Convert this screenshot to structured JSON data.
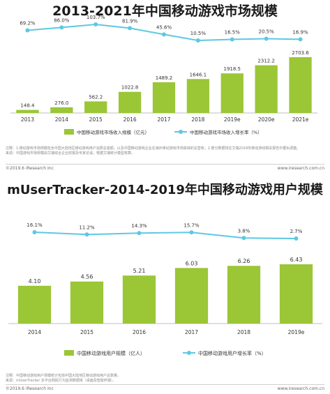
{
  "chart_data": [
    {
      "type": "bar",
      "title": "2013-2021年中国移动游戏市场规模",
      "categories": [
        "2013",
        "2014",
        "2015",
        "2016",
        "2017",
        "2018",
        "2019e",
        "2020e",
        "2021e"
      ],
      "series": [
        {
          "name": "中国移动游戏市场收入规模（亿元）",
          "type": "bar",
          "values": [
            148.4,
            276.0,
            562.2,
            1022.8,
            1489.2,
            1646.1,
            1918.5,
            2312.2,
            2703.6
          ],
          "labels": [
            "148.4",
            "276.0",
            "562.2",
            "1022.8",
            "1489.2",
            "1646.1",
            "1918.5",
            "2312.2",
            "2703.6"
          ]
        },
        {
          "name": "中国移动游戏市场收入增长率（%）",
          "type": "line",
          "values": [
            69.2,
            86.0,
            103.7,
            81.9,
            45.6,
            10.5,
            16.5,
            20.5,
            16.9
          ],
          "labels": [
            "69.2%",
            "86.0%",
            "103.7%",
            "81.9%",
            "45.6%",
            "10.5%",
            "16.5%",
            "20.5%",
            "16.9%"
          ]
        }
      ],
      "bar_color": "#9bc636",
      "line_color": "#5ec8e4",
      "legend_position": "bottom",
      "notes": [
        "注释：1.移动游戏市场规模包含中国大陆地区移动游戏用户消费总金额，以及中国移动游戏企业在海外移动游戏市场获得的总营收；2.部分数据将在艾瑞2018年移动游戏相关报告中据出调整。",
        "来源：中国游戏市场规模由艾瑞综合企业财报及专家访谈，根据艾瑞统计模型核算。"
      ],
      "footer_left": "©2019.6 iResearch Inc",
      "footer_right": "www.iresearch.com.cn"
    },
    {
      "type": "bar",
      "title": "mUserTracker-2014-2019年中国移动游戏用户规模",
      "categories": [
        "2014",
        "2015",
        "2016",
        "2017",
        "2018",
        "2019e"
      ],
      "series": [
        {
          "name": "中国移动游戏用户规模（亿人）",
          "type": "bar",
          "values": [
            4.1,
            4.56,
            5.21,
            6.03,
            6.26,
            6.43
          ],
          "labels": [
            "4.10",
            "4.56",
            "5.21",
            "6.03",
            "6.26",
            "6.43"
          ]
        },
        {
          "name": "中国移动游戏用户增长率（%）",
          "type": "line",
          "values": [
            16.1,
            11.2,
            14.3,
            15.7,
            3.8,
            2.7
          ],
          "labels": [
            "16.1%",
            "11.2%",
            "14.3%",
            "15.7%",
            "3.8%",
            "2.7%"
          ]
        }
      ],
      "bar_color": "#9bc636",
      "line_color": "#5ec8e4",
      "legend_position": "bottom",
      "notes": [
        "注释：中国移动游戏用户规模统计包括中国大陆地区移动游戏用户总数量。",
        "来源：mUserTracker 多平台网民行为监测数据库（桌面及智能终端）。"
      ],
      "footer_left": "©2019.6 iResearch Inc",
      "footer_right": "www.iresearch.com.cn"
    }
  ]
}
